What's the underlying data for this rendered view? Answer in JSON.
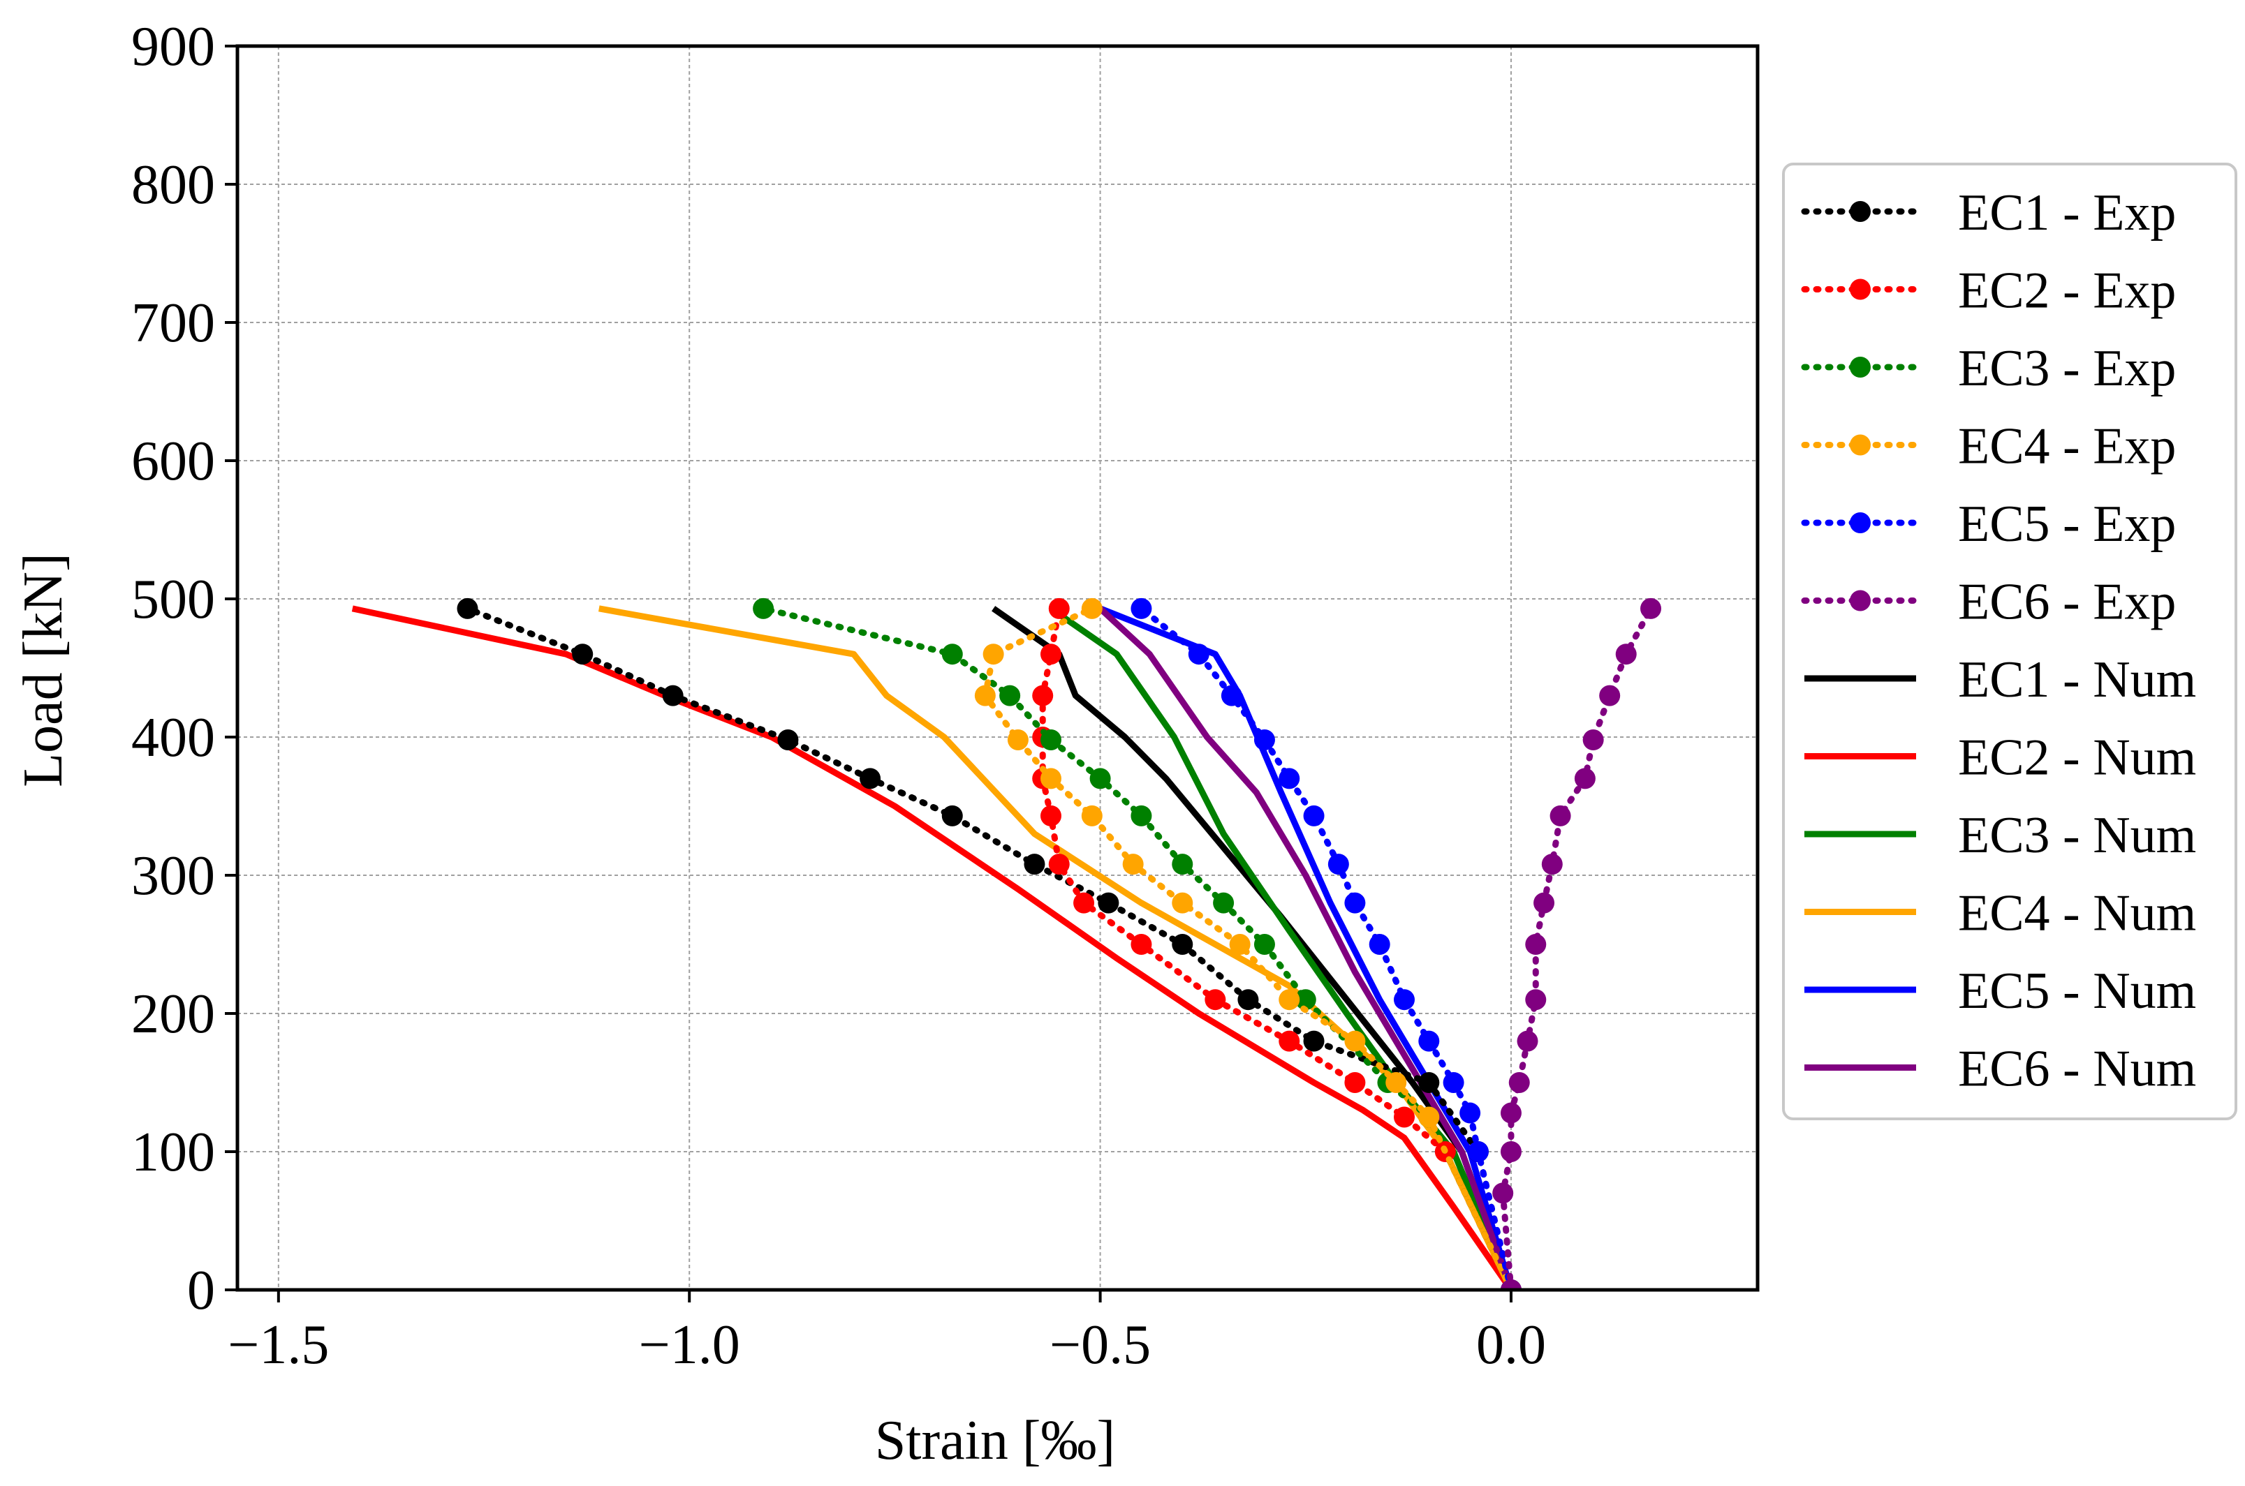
{
  "chart_data": {
    "type": "line",
    "xlabel": "Strain [‰]",
    "ylabel": "Load [kN]",
    "xlim": [
      -1.55,
      0.3
    ],
    "ylim": [
      0,
      900
    ],
    "xticks": [
      -1.5,
      -1.0,
      -0.5,
      0.0
    ],
    "xtick_labels": [
      "−1.5",
      "−1.0",
      "−0.5",
      "0.0"
    ],
    "yticks": [
      0,
      100,
      200,
      300,
      400,
      500,
      600,
      700,
      800,
      900
    ],
    "ytick_labels": [
      "0",
      "100",
      "200",
      "300",
      "400",
      "500",
      "600",
      "700",
      "800",
      "900"
    ],
    "grid": true,
    "legend_position": "outside right",
    "series": [
      {
        "name": "EC1 - Exp",
        "color": "#000000",
        "style": "dotted-markers",
        "points": [
          [
            0.0,
            0
          ],
          [
            -0.04,
            100
          ],
          [
            -0.1,
            150
          ],
          [
            -0.24,
            180
          ],
          [
            -0.32,
            210
          ],
          [
            -0.4,
            250
          ],
          [
            -0.49,
            280
          ],
          [
            -0.58,
            308
          ],
          [
            -0.68,
            343
          ],
          [
            -0.78,
            370
          ],
          [
            -0.88,
            398
          ],
          [
            -1.02,
            430
          ],
          [
            -1.13,
            460
          ],
          [
            -1.27,
            493
          ]
        ]
      },
      {
        "name": "EC2 - Exp",
        "color": "#ff0000",
        "style": "dotted-markers",
        "points": [
          [
            0.0,
            0
          ],
          [
            -0.08,
            100
          ],
          [
            -0.13,
            125
          ],
          [
            -0.19,
            150
          ],
          [
            -0.27,
            180
          ],
          [
            -0.36,
            210
          ],
          [
            -0.45,
            250
          ],
          [
            -0.52,
            280
          ],
          [
            -0.55,
            308
          ],
          [
            -0.56,
            343
          ],
          [
            -0.57,
            370
          ],
          [
            -0.57,
            400
          ],
          [
            -0.57,
            430
          ],
          [
            -0.56,
            460
          ],
          [
            -0.55,
            493
          ]
        ]
      },
      {
        "name": "EC3 - Exp",
        "color": "#008000",
        "style": "dotted-markers",
        "points": [
          [
            0.0,
            0
          ],
          [
            -0.1,
            125
          ],
          [
            -0.15,
            150
          ],
          [
            -0.25,
            210
          ],
          [
            -0.3,
            250
          ],
          [
            -0.35,
            280
          ],
          [
            -0.4,
            308
          ],
          [
            -0.45,
            343
          ],
          [
            -0.5,
            370
          ],
          [
            -0.56,
            398
          ],
          [
            -0.61,
            430
          ],
          [
            -0.68,
            460
          ],
          [
            -0.91,
            493
          ]
        ]
      },
      {
        "name": "EC4 - Exp",
        "color": "#ffa500",
        "style": "dotted-markers",
        "points": [
          [
            0.0,
            0
          ],
          [
            -0.1,
            125
          ],
          [
            -0.14,
            150
          ],
          [
            -0.19,
            180
          ],
          [
            -0.27,
            210
          ],
          [
            -0.33,
            250
          ],
          [
            -0.4,
            280
          ],
          [
            -0.46,
            308
          ],
          [
            -0.51,
            343
          ],
          [
            -0.56,
            370
          ],
          [
            -0.6,
            398
          ],
          [
            -0.64,
            430
          ],
          [
            -0.63,
            460
          ],
          [
            -0.51,
            493
          ]
        ]
      },
      {
        "name": "EC5 - Exp",
        "color": "#0000ff",
        "style": "dotted-markers",
        "points": [
          [
            0.0,
            0
          ],
          [
            -0.04,
            100
          ],
          [
            -0.05,
            128
          ],
          [
            -0.07,
            150
          ],
          [
            -0.1,
            180
          ],
          [
            -0.13,
            210
          ],
          [
            -0.16,
            250
          ],
          [
            -0.19,
            280
          ],
          [
            -0.21,
            308
          ],
          [
            -0.24,
            343
          ],
          [
            -0.27,
            370
          ],
          [
            -0.3,
            398
          ],
          [
            -0.34,
            430
          ],
          [
            -0.38,
            460
          ],
          [
            -0.45,
            493
          ]
        ]
      },
      {
        "name": "EC6 - Exp",
        "color": "#800080",
        "style": "dotted-markers",
        "points": [
          [
            0.0,
            0
          ],
          [
            -0.01,
            70
          ],
          [
            0.0,
            100
          ],
          [
            0.0,
            128
          ],
          [
            0.01,
            150
          ],
          [
            0.02,
            180
          ],
          [
            0.03,
            210
          ],
          [
            0.03,
            250
          ],
          [
            0.04,
            280
          ],
          [
            0.05,
            308
          ],
          [
            0.06,
            343
          ],
          [
            0.09,
            370
          ],
          [
            0.1,
            398
          ],
          [
            0.12,
            430
          ],
          [
            0.14,
            460
          ],
          [
            0.17,
            493
          ]
        ]
      },
      {
        "name": "EC1 - Num",
        "color": "#000000",
        "style": "solid",
        "points": [
          [
            0.0,
            0
          ],
          [
            -0.06,
            100
          ],
          [
            -0.12,
            150
          ],
          [
            -0.2,
            210
          ],
          [
            -0.28,
            270
          ],
          [
            -0.35,
            320
          ],
          [
            -0.42,
            370
          ],
          [
            -0.47,
            400
          ],
          [
            -0.53,
            430
          ],
          [
            -0.55,
            460
          ],
          [
            -0.63,
            493
          ]
        ]
      },
      {
        "name": "EC2 - Num",
        "color": "#ff0000",
        "style": "solid",
        "points": [
          [
            0.0,
            0
          ],
          [
            -0.07,
            60
          ],
          [
            -0.13,
            110
          ],
          [
            -0.18,
            130
          ],
          [
            -0.24,
            150
          ],
          [
            -0.31,
            175
          ],
          [
            -0.38,
            200
          ],
          [
            -0.48,
            240
          ],
          [
            -0.6,
            290
          ],
          [
            -0.75,
            350
          ],
          [
            -0.9,
            400
          ],
          [
            -1.03,
            430
          ],
          [
            -1.15,
            460
          ],
          [
            -1.41,
            493
          ]
        ]
      },
      {
        "name": "EC3 - Num",
        "color": "#008000",
        "style": "solid",
        "points": [
          [
            0.0,
            0
          ],
          [
            -0.07,
            100
          ],
          [
            -0.14,
            150
          ],
          [
            -0.2,
            200
          ],
          [
            -0.27,
            260
          ],
          [
            -0.35,
            330
          ],
          [
            -0.41,
            400
          ],
          [
            -0.48,
            460
          ],
          [
            -0.56,
            493
          ]
        ]
      },
      {
        "name": "EC4 - Num",
        "color": "#ffa500",
        "style": "solid",
        "points": [
          [
            0.0,
            0
          ],
          [
            -0.08,
            100
          ],
          [
            -0.14,
            150
          ],
          [
            -0.27,
            220
          ],
          [
            -0.45,
            280
          ],
          [
            -0.58,
            330
          ],
          [
            -0.69,
            400
          ],
          [
            -0.76,
            430
          ],
          [
            -0.8,
            460
          ],
          [
            -1.11,
            493
          ]
        ]
      },
      {
        "name": "EC5 - Num",
        "color": "#0000ff",
        "style": "solid",
        "points": [
          [
            0.0,
            0
          ],
          [
            -0.05,
            100
          ],
          [
            -0.1,
            150
          ],
          [
            -0.16,
            210
          ],
          [
            -0.22,
            280
          ],
          [
            -0.28,
            360
          ],
          [
            -0.33,
            430
          ],
          [
            -0.36,
            460
          ],
          [
            -0.5,
            493
          ]
        ]
      },
      {
        "name": "EC6 - Num",
        "color": "#800080",
        "style": "solid",
        "points": [
          [
            0.0,
            0
          ],
          [
            -0.06,
            100
          ],
          [
            -0.12,
            160
          ],
          [
            -0.19,
            230
          ],
          [
            -0.25,
            300
          ],
          [
            -0.31,
            360
          ],
          [
            -0.37,
            400
          ],
          [
            -0.44,
            460
          ],
          [
            -0.5,
            493
          ]
        ]
      }
    ]
  }
}
